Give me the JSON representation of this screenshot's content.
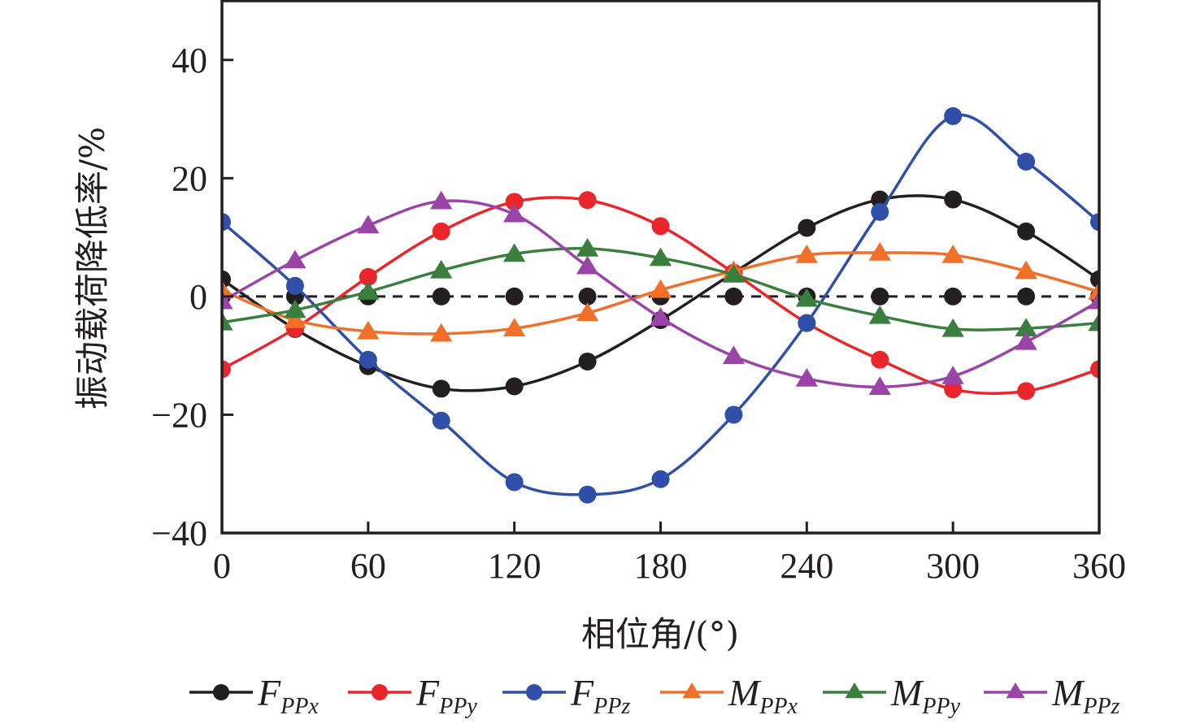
{
  "chart_data": {
    "type": "line",
    "title": "",
    "xlabel": "相位角/(°)",
    "ylabel": "振动载荷降低率/%",
    "xlim": [
      0,
      360
    ],
    "ylim": [
      -40,
      50
    ],
    "xticks": [
      0,
      60,
      120,
      180,
      240,
      300,
      360
    ],
    "yticks": [
      -40,
      -20,
      0,
      20,
      40
    ],
    "xtick_labels": [
      "0",
      "60",
      "120",
      "180",
      "240",
      "300",
      "360"
    ],
    "ytick_labels": [
      "−40",
      "−20",
      "0",
      "20",
      "40"
    ],
    "grid": false,
    "legend_position": "bottom",
    "x": [
      0,
      30,
      60,
      90,
      120,
      150,
      180,
      210,
      240,
      270,
      300,
      330,
      360
    ],
    "reference_line": {
      "y": 0,
      "style": "dashed",
      "color": "#231f20",
      "marker": "circle",
      "values": [
        0,
        0,
        0,
        0,
        0,
        0,
        0,
        0,
        0,
        0,
        0,
        0,
        0
      ]
    },
    "series": [
      {
        "name": "F",
        "sub": "PP",
        "axis": "x",
        "marker": "circle",
        "color": "#231f20",
        "values": [
          2.9,
          -5.5,
          -11.8,
          -15.6,
          -15.2,
          -11.0,
          -4.0,
          4.0,
          11.6,
          16.4,
          16.4,
          11.0,
          2.9
        ]
      },
      {
        "name": "F",
        "sub": "PP",
        "axis": "y",
        "marker": "circle",
        "color": "#e8262b",
        "values": [
          -12.3,
          -5.4,
          3.3,
          11.0,
          16.0,
          16.3,
          11.9,
          4.0,
          -4.5,
          -10.7,
          -15.7,
          -16.0,
          -12.3
        ]
      },
      {
        "name": "F",
        "sub": "PP",
        "axis": "z",
        "marker": "circle",
        "color": "#2f4fa8",
        "values": [
          12.6,
          1.8,
          -10.7,
          -21.0,
          -31.4,
          -33.5,
          -30.9,
          -20.0,
          -4.5,
          14.3,
          30.5,
          22.8,
          12.6
        ]
      },
      {
        "name": "M",
        "sub": "PP",
        "axis": "x",
        "marker": "triangle",
        "color": "#f07029",
        "values": [
          1.0,
          -4.0,
          -5.9,
          -6.3,
          -5.4,
          -2.8,
          1.1,
          4.3,
          7.0,
          7.4,
          7.0,
          4.3,
          0.8
        ]
      },
      {
        "name": "M",
        "sub": "PP",
        "axis": "y",
        "marker": "triangle",
        "color": "#3a7f3e",
        "values": [
          -4.4,
          -2.3,
          0.8,
          4.4,
          7.2,
          8.1,
          6.5,
          3.7,
          -0.4,
          -3.3,
          -5.5,
          -5.4,
          -4.5
        ]
      },
      {
        "name": "M",
        "sub": "PP",
        "axis": "z",
        "marker": "triangle",
        "color": "#9b44a8",
        "values": [
          -0.8,
          6.1,
          12.0,
          16.1,
          13.9,
          5.1,
          -3.6,
          -10.1,
          -13.9,
          -15.3,
          -13.5,
          -7.7,
          -0.8
        ]
      }
    ]
  }
}
